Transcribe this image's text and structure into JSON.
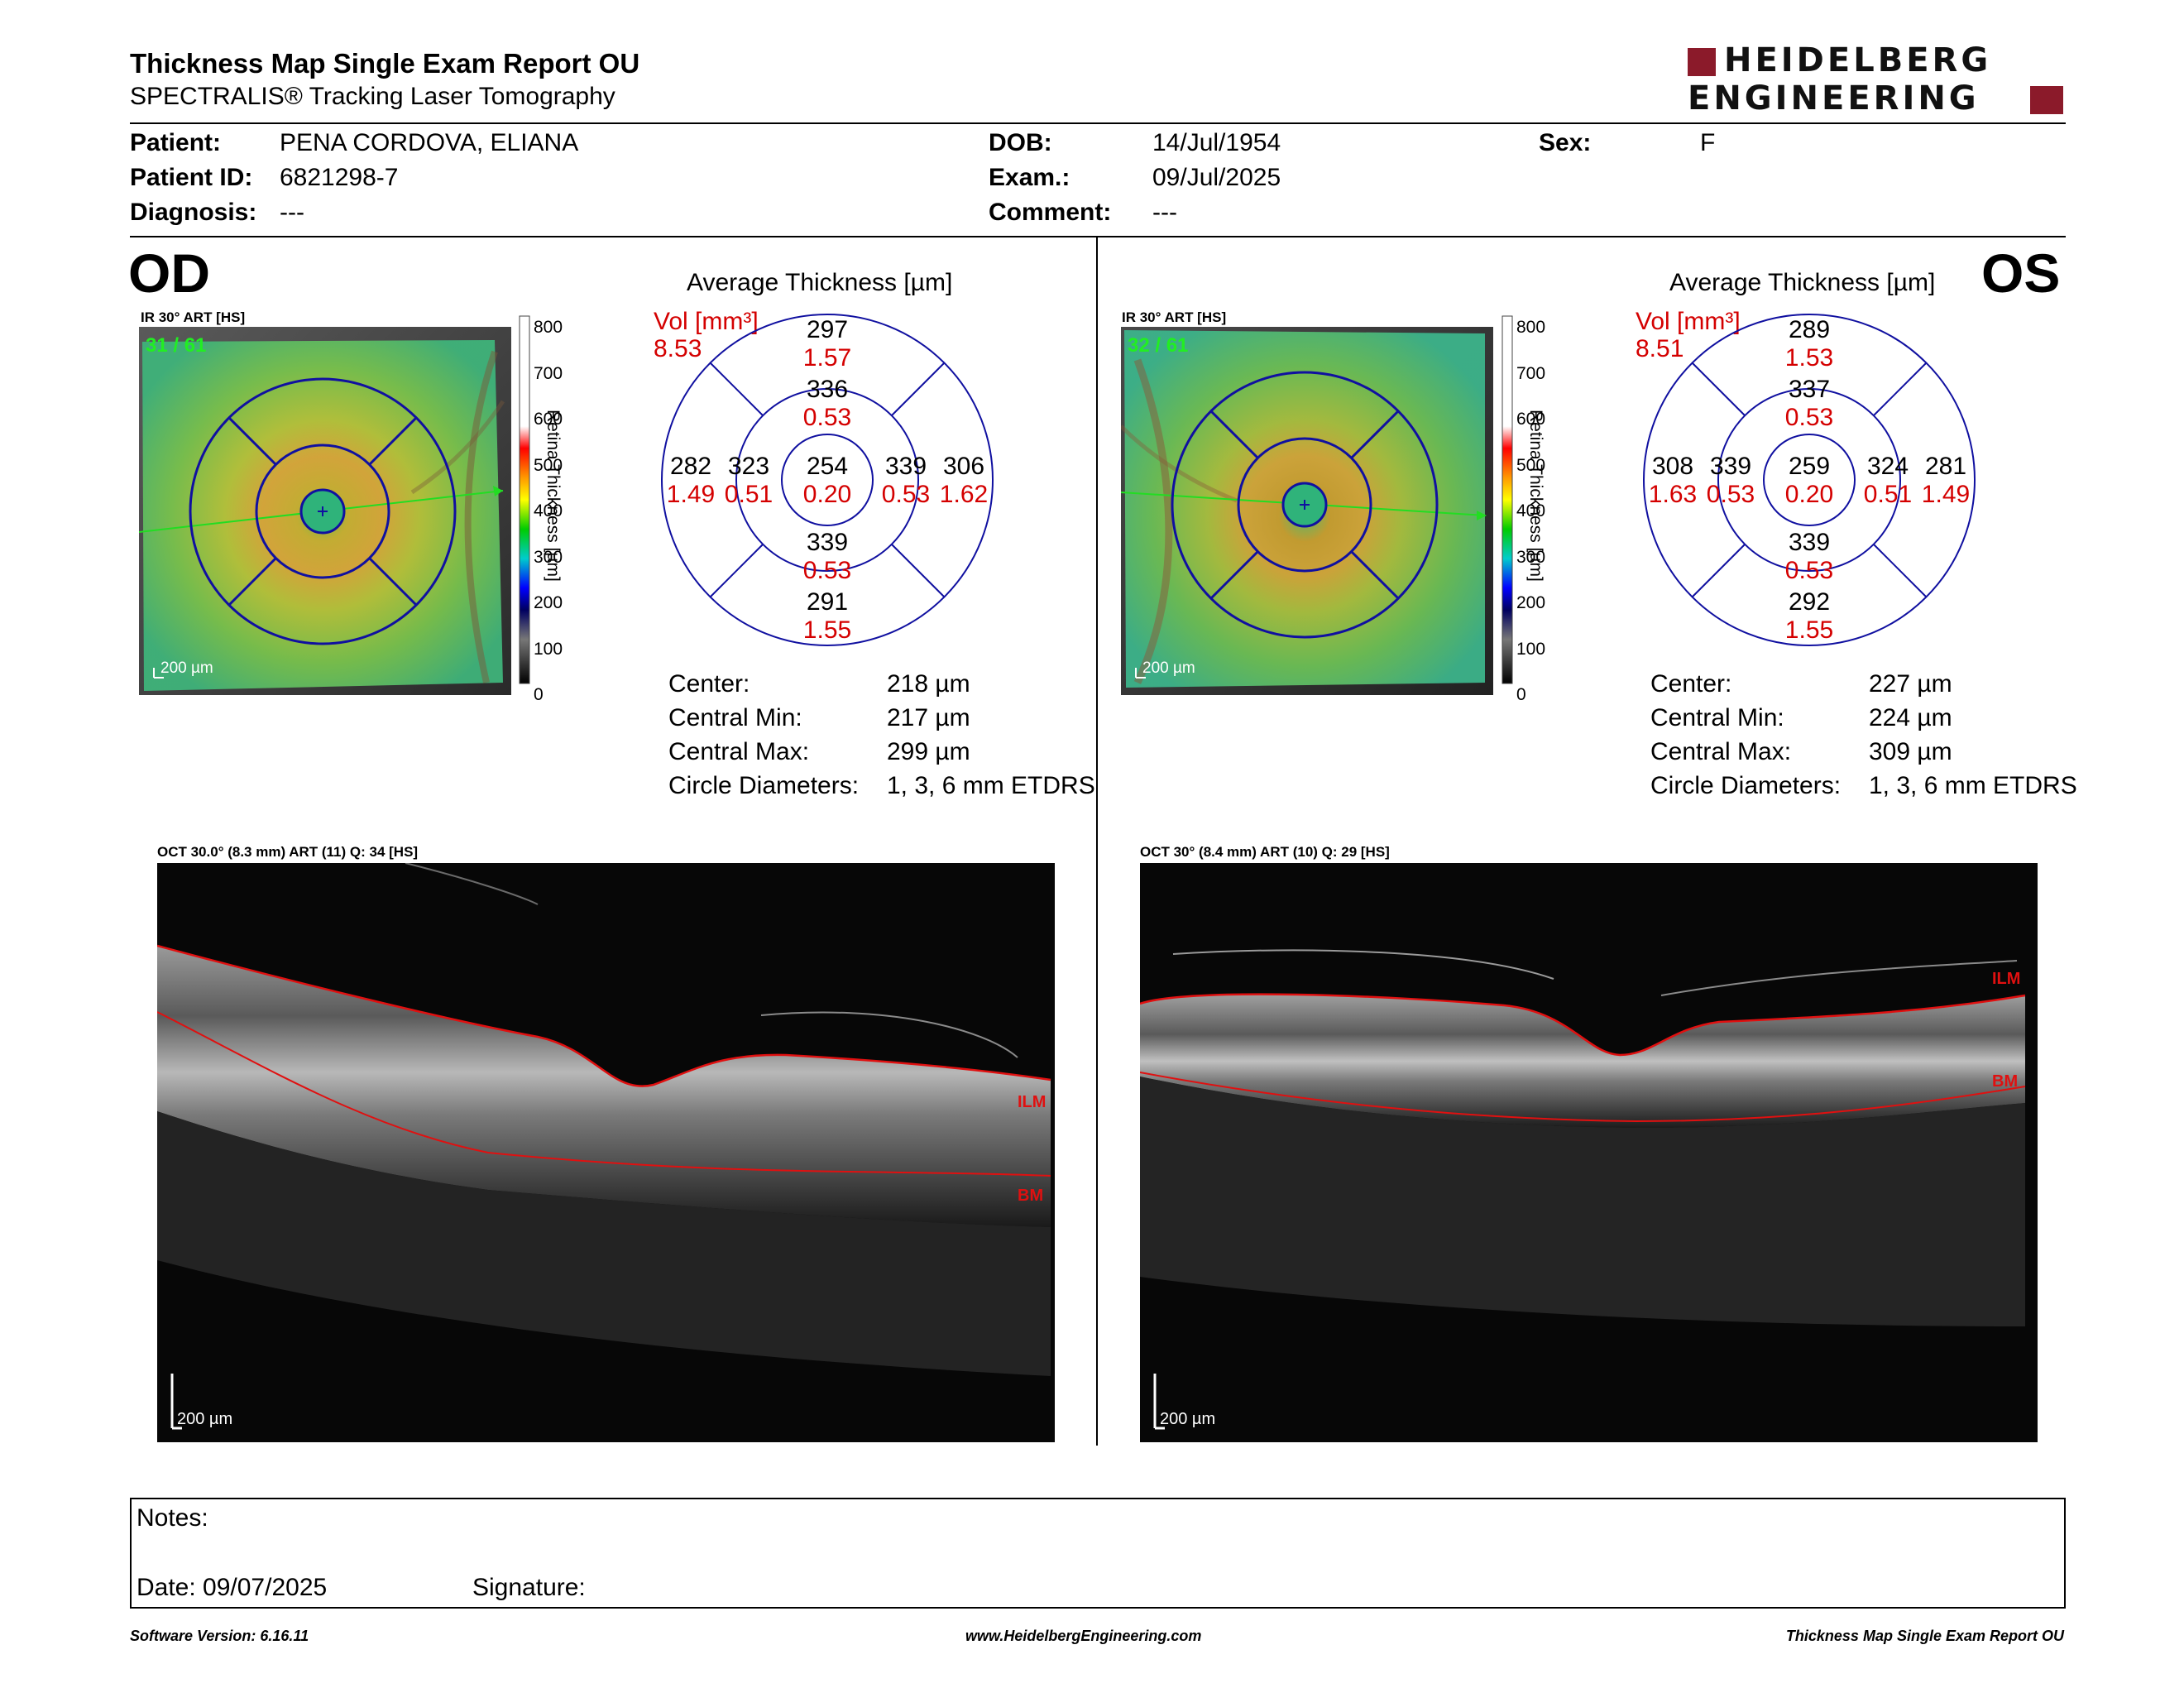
{
  "header": {
    "title": "Thickness Map Single Exam Report OU",
    "subtitle": "SPECTRALIS® Tracking Laser Tomography",
    "logo_line1": "HEIDELBERG",
    "logo_line2": "ENGINEERING"
  },
  "patient": {
    "patient_label": "Patient:",
    "patient_value": "PENA CORDOVA, ELIANA",
    "id_label": "Patient ID:",
    "id_value": "6821298-7",
    "diagnosis_label": "Diagnosis:",
    "diagnosis_value": "---",
    "dob_label": "DOB:",
    "dob_value": "14/Jul/1954",
    "exam_label": "Exam.:",
    "exam_value": "09/Jul/2025",
    "comment_label": "Comment:",
    "comment_value": "---",
    "sex_label": "Sex:",
    "sex_value": "F"
  },
  "od": {
    "eye": "OD",
    "ir_caption": "IR 30° ART [HS]",
    "frame_count": "31 / 61",
    "scale": "200 µm",
    "avg_title": "Average Thickness [µm]",
    "vol_label": "Vol [mm³]",
    "vol_total": "8.53",
    "grid": {
      "outer_top": "297",
      "outer_top_v": "1.57",
      "inner_top": "336",
      "inner_top_v": "0.53",
      "outer_left": "282",
      "outer_left_v": "1.49",
      "inner_left": "323",
      "inner_left_v": "0.51",
      "center": "254",
      "center_v": "0.20",
      "inner_right": "339",
      "inner_right_v": "0.53",
      "outer_right": "306",
      "outer_right_v": "1.62",
      "inner_bottom": "339",
      "inner_bottom_v": "0.53",
      "outer_bottom": "291",
      "outer_bottom_v": "1.55"
    },
    "stats": {
      "center_label": "Center:",
      "center_value": "218 µm",
      "min_label": "Central Min:",
      "min_value": "217 µm",
      "max_label": "Central Max:",
      "max_value": "299 µm",
      "diam_label": "Circle Diameters:",
      "diam_value": "1, 3, 6 mm ETDRS"
    },
    "oct_caption": "OCT 30.0° (8.3 mm) ART (11) Q: 34 [HS]",
    "oct_scale": "200 µm",
    "ilm": "ILM",
    "bm": "BM"
  },
  "os": {
    "eye": "OS",
    "ir_caption": "IR 30° ART [HS]",
    "frame_count": "32 / 61",
    "scale": "200 µm",
    "avg_title": "Average Thickness [µm]",
    "vol_label": "Vol [mm³]",
    "vol_total": "8.51",
    "grid": {
      "outer_top": "289",
      "outer_top_v": "1.53",
      "inner_top": "337",
      "inner_top_v": "0.53",
      "outer_left": "308",
      "outer_left_v": "1.63",
      "inner_left": "339",
      "inner_left_v": "0.53",
      "center": "259",
      "center_v": "0.20",
      "inner_right": "324",
      "inner_right_v": "0.51",
      "outer_right": "281",
      "outer_right_v": "1.49",
      "inner_bottom": "339",
      "inner_bottom_v": "0.53",
      "outer_bottom": "292",
      "outer_bottom_v": "1.55"
    },
    "stats": {
      "center_label": "Center:",
      "center_value": "227 µm",
      "min_label": "Central Min:",
      "min_value": "224 µm",
      "max_label": "Central Max:",
      "max_value": "309 µm",
      "diam_label": "Circle Diameters:",
      "diam_value": "1, 3, 6 mm ETDRS"
    },
    "oct_caption": "OCT 30° (8.4 mm) ART (10) Q: 29 [HS]",
    "oct_scale": "200 µm",
    "ilm": "ILM",
    "bm": "BM"
  },
  "colorbar": {
    "ticks": [
      "800",
      "700",
      "600",
      "500",
      "400",
      "300",
      "200",
      "100",
      "0"
    ],
    "label": "Retina Thickness [µm]"
  },
  "notes": {
    "notes_label": "Notes:",
    "date_label": "Date: 09/07/2025",
    "signature_label": "Signature:"
  },
  "footer": {
    "software": "Software Version: 6.16.11",
    "website": "www.HeidelbergEngineering.com",
    "report": "Thickness Map Single Exam Report OU"
  }
}
